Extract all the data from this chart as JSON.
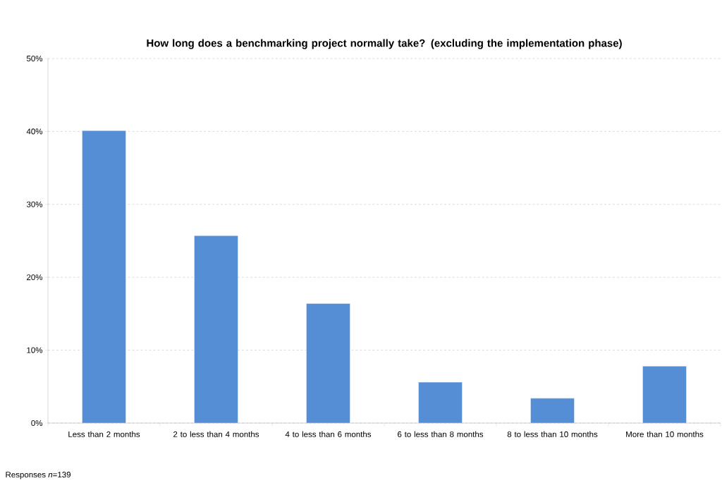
{
  "chart_data": {
    "type": "bar",
    "title": "How long does a benchmarking project normally take? (excluding the implementation phase)",
    "categories": [
      "Less than 2 months",
      "2 to less than 4 months",
      "4 to less than 6 months",
      "6 to less than 8 months",
      "8 to less than 10 months",
      "More than 10 months"
    ],
    "values": [
      40.1,
      25.7,
      16.4,
      5.6,
      3.4,
      7.8
    ],
    "color": "#558ed5",
    "ylim": [
      0,
      50
    ],
    "yticks": [
      {
        "value": 0,
        "label": "0%"
      },
      {
        "value": 10,
        "label": "10%"
      },
      {
        "value": 20,
        "label": "20%"
      },
      {
        "value": 30,
        "label": "30%"
      },
      {
        "value": 40,
        "label": "40%"
      },
      {
        "value": 50,
        "label": "50%"
      }
    ],
    "grid": "y",
    "annotations": [
      "Responses *n*=139"
    ]
  }
}
